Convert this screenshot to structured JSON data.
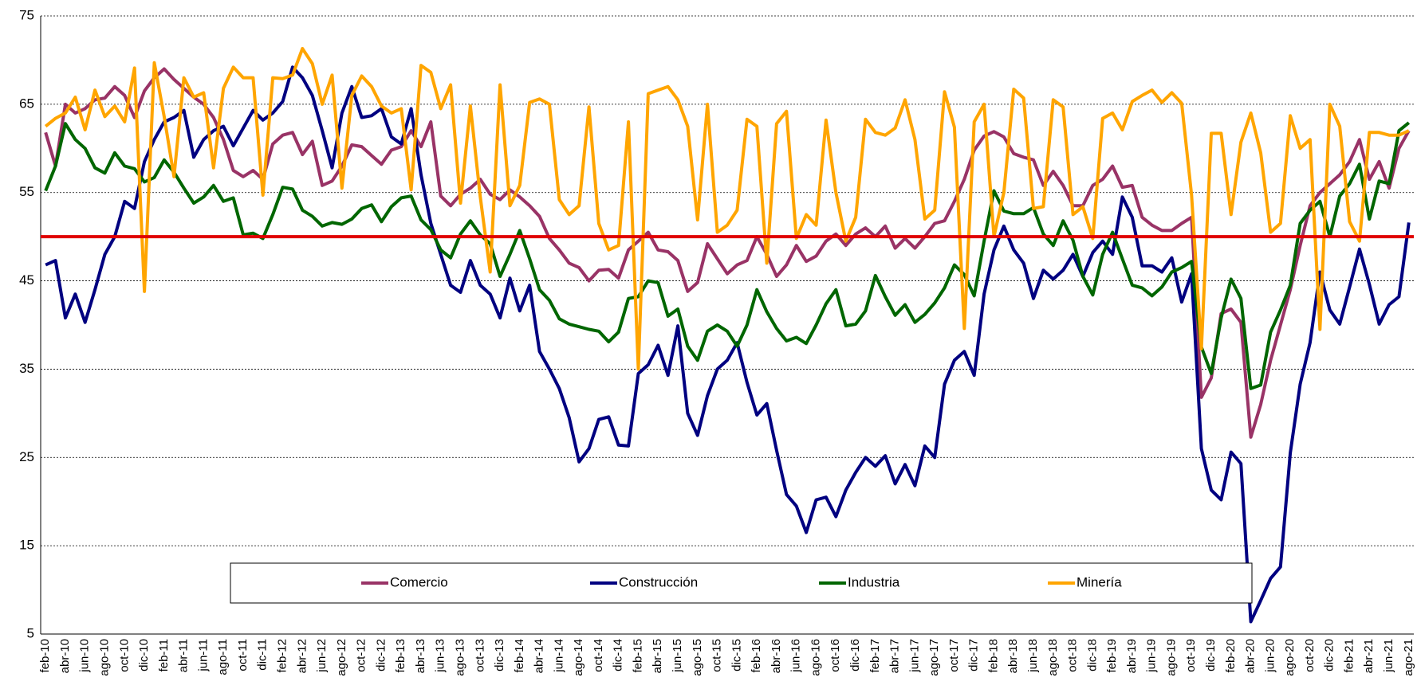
{
  "chart_data": {
    "type": "line",
    "categories": [
      "feb-10",
      null,
      "abr-10",
      null,
      "jun-10",
      null,
      "ago-10",
      null,
      "oct-10",
      null,
      "dic-10",
      null,
      "feb-11",
      null,
      "abr-11",
      null,
      "jun-11",
      null,
      "ago-11",
      null,
      "oct-11",
      null,
      "dic-11",
      null,
      "feb-12",
      null,
      "abr-12",
      null,
      "jun-12",
      null,
      "ago-12",
      null,
      "oct-12",
      null,
      "dic-12",
      null,
      "feb-13",
      null,
      "abr-13",
      null,
      "jun-13",
      null,
      "ago-13",
      null,
      "oct-13",
      null,
      "dic-13",
      null,
      "feb-14",
      null,
      "abr-14",
      null,
      "jun-14",
      null,
      "ago-14",
      null,
      "oct-14",
      null,
      "dic-14",
      null,
      "feb-15",
      null,
      "abr-15",
      null,
      "jun-15",
      null,
      "ago-15",
      null,
      "oct-15",
      null,
      "dic-15",
      null,
      "feb-16",
      null,
      "abr-16",
      null,
      "jun-16",
      null,
      "ago-16",
      null,
      "oct-16",
      null,
      "dic-16",
      null,
      "feb-17",
      null,
      "abr-17",
      null,
      "jun-17",
      null,
      "ago-17",
      null,
      "oct-17",
      null,
      "dic-17",
      null,
      "feb-18",
      null,
      "abr-18",
      null,
      "jun-18",
      null,
      "ago-18",
      null,
      "oct-18",
      null,
      "dic-18",
      null,
      "feb-19",
      null,
      "abr-19",
      null,
      "jun-19",
      null,
      "ago-19",
      null,
      "oct-19",
      null,
      "dic-19",
      null,
      "feb-20",
      null,
      "abr-20",
      null,
      "jun-20",
      null,
      "ago-20",
      null,
      "oct-20",
      null,
      "dic-20",
      null,
      "feb-21",
      null,
      "abr-21",
      null,
      "jun-21",
      null,
      "ago-21"
    ],
    "series": [
      {
        "name": "Comercio",
        "color": "#993366",
        "values": [
          61.8,
          58,
          65,
          64,
          64.5,
          65.5,
          65.7,
          67,
          66,
          63.5,
          66.5,
          68,
          69,
          67.8,
          66.8,
          65.8,
          65,
          63.5,
          61,
          57.5,
          56.8,
          57.5,
          56.5,
          60.5,
          61.5,
          61.8,
          59.3,
          60.8,
          55.8,
          56.3,
          58,
          60.4,
          60.2,
          59.2,
          58.2,
          59.8,
          60.2,
          62,
          60.2,
          63,
          54.6,
          53.5,
          54.8,
          55.5,
          56.5,
          54.8,
          54.2,
          55.3,
          54.5,
          53.5,
          52.3,
          49.8,
          48.5,
          47,
          46.5,
          45,
          46.2,
          46.3,
          45.3,
          48.5,
          49.5,
          50.5,
          48.5,
          48.3,
          47.3,
          43.8,
          44.8,
          49.2,
          47.5,
          45.8,
          46.8,
          47.3,
          50,
          48,
          45.5,
          46.8,
          49,
          47.2,
          47.8,
          49.5,
          50.3,
          49,
          50.3,
          51,
          50,
          51.2,
          48.7,
          49.8,
          48.7,
          50,
          51.5,
          51.8,
          54,
          56.5,
          59.8,
          61.4,
          61.9,
          61.3,
          59.4,
          59,
          58.7,
          55.8,
          57.4,
          55.8,
          53.5,
          53.5,
          55.8,
          56.5,
          58,
          55.6,
          55.8,
          52.2,
          51.3,
          50.7,
          50.7,
          51.5,
          52.2,
          31.8,
          34,
          41.3,
          41.8,
          40.3,
          27.3,
          31,
          36,
          40,
          44,
          49,
          53.5,
          55,
          56,
          57,
          58.5,
          61,
          56.5,
          58.5,
          55.5,
          60,
          62
        ]
      },
      {
        "name": "Construcción",
        "color": "#000080",
        "values": [
          46.8,
          47.3,
          40.8,
          43.5,
          40.3,
          44,
          48,
          50,
          54,
          53.2,
          58.5,
          61,
          63,
          63.5,
          64.3,
          59,
          61,
          62,
          62.5,
          60.3,
          62.3,
          64.3,
          63.2,
          64,
          65.3,
          69.2,
          68,
          66,
          62,
          57.8,
          64,
          67,
          63.5,
          63.7,
          64.5,
          61.3,
          60.5,
          64.5,
          57,
          51.5,
          48,
          44.5,
          43.7,
          47.3,
          44.5,
          43.5,
          40.8,
          45.3,
          41.6,
          44.5,
          37,
          35,
          32.8,
          29.5,
          24.5,
          26,
          29.3,
          29.6,
          26.4,
          26.3,
          34.5,
          35.5,
          37.7,
          34.3,
          39.9,
          30,
          27.5,
          32,
          35,
          36,
          38,
          33.5,
          29.8,
          31.1,
          25.8,
          20.8,
          19.5,
          16.5,
          20.2,
          20.5,
          18.3,
          21.3,
          23.3,
          25,
          24,
          25.2,
          22,
          24.2,
          21.8,
          26.3,
          25,
          33.3,
          36,
          37,
          34.3,
          43.5,
          48.5,
          51.2,
          48.5,
          47,
          43,
          46.2,
          45.2,
          46.2,
          48,
          45.5,
          48.2,
          49.5,
          48,
          54.5,
          52.2,
          46.7,
          46.7,
          46,
          47.6,
          42.6,
          45.8,
          26,
          21.3,
          20.2,
          25.6,
          24.3,
          6.4,
          8.8,
          11.3,
          12.6,
          25.5,
          33.3,
          38,
          46,
          41.7,
          40.1,
          44.3,
          48.6,
          44.6,
          40.1,
          42.3,
          43.2,
          51.6
        ]
      },
      {
        "name": "Industria",
        "color": "#006600",
        "values": [
          55.2,
          58,
          62.8,
          61,
          60,
          57.8,
          57.2,
          59.5,
          58,
          57.7,
          56.2,
          56.7,
          58.7,
          57.3,
          55.5,
          53.8,
          54.5,
          55.8,
          54,
          54.4,
          50.2,
          50.4,
          49.8,
          52.5,
          55.6,
          55.4,
          53,
          52.3,
          51.2,
          51.6,
          51.4,
          52,
          53.2,
          53.6,
          51.7,
          53.4,
          54.4,
          54.6,
          51.9,
          50.8,
          48.5,
          47.6,
          50.3,
          51.8,
          50.2,
          49.2,
          45.5,
          48,
          50.7,
          47.5,
          44,
          42.8,
          40.7,
          40.1,
          39.8,
          39.5,
          39.3,
          38.1,
          39.2,
          43,
          43.2,
          45,
          44.8,
          41,
          41.8,
          37.6,
          36,
          39.3,
          40,
          39.3,
          37.6,
          40,
          44,
          41.5,
          39.6,
          38.2,
          38.6,
          37.9,
          40,
          42.4,
          44,
          39.9,
          40.1,
          41.6,
          45.6,
          43.2,
          41.1,
          42.3,
          40.3,
          41.2,
          42.5,
          44.2,
          46.8,
          45.7,
          43.3,
          49.5,
          55.2,
          52.9,
          52.6,
          52.6,
          53.3,
          50.3,
          49,
          51.8,
          49.6,
          45.5,
          43.4,
          48,
          50.5,
          47.5,
          44.5,
          44.2,
          43.3,
          44.3,
          46,
          46.5,
          47.2,
          37.5,
          34.5,
          40.8,
          45.2,
          43,
          32.8,
          33.2,
          39.2,
          41.7,
          44.5,
          51.5,
          53,
          54,
          50,
          54.6,
          56,
          58.2,
          52,
          56.3,
          56,
          62,
          62.9
        ]
      },
      {
        "name": "Minería",
        "color": "#ffa500",
        "values": [
          62.5,
          63.4,
          64,
          65.8,
          62.1,
          66.6,
          63.6,
          64.8,
          63,
          69.1,
          43.8,
          69.7,
          63.6,
          56.8,
          68,
          65.8,
          66.3,
          57.8,
          66.8,
          69.2,
          68,
          68,
          54.7,
          68,
          67.9,
          68.3,
          71.3,
          69.6,
          65,
          68.3,
          55.5,
          66,
          68.2,
          67,
          64.8,
          64,
          64.5,
          55.3,
          69.4,
          68.6,
          64.5,
          67.2,
          53.8,
          64.8,
          54.5,
          46,
          67.2,
          53.5,
          55.8,
          65.2,
          65.6,
          65,
          54.2,
          52.5,
          53.5,
          64.7,
          51.5,
          48.5,
          49,
          63,
          35,
          66.2,
          66.6,
          67,
          65.5,
          62.5,
          51.9,
          65,
          50.5,
          51.3,
          53,
          63.3,
          62.5,
          47,
          62.8,
          64.2,
          49.8,
          52.5,
          51.3,
          63.2,
          55,
          49.5,
          52.2,
          63.3,
          61.8,
          61.5,
          62.3,
          65.5,
          61,
          52,
          53,
          66.4,
          62.4,
          39.6,
          63,
          65,
          50,
          55,
          66.7,
          65.7,
          53.2,
          53.4,
          65.5,
          64.7,
          52.5,
          53.4,
          49.8,
          63.4,
          64,
          62.1,
          65.3,
          66,
          66.6,
          65.2,
          66.3,
          65.1,
          54.7,
          37.3,
          61.7,
          61.7,
          52.5,
          60.7,
          64,
          59.5,
          50.5,
          51.5,
          63.7,
          60,
          61,
          39.5,
          65,
          62.5,
          51.7,
          49.5,
          61.8,
          61.8,
          61.5,
          61.5,
          62
        ]
      }
    ],
    "reference_line": {
      "value": 50,
      "color": "#e00000"
    },
    "ylim": [
      5,
      75
    ],
    "yticks": [
      5,
      15,
      25,
      35,
      45,
      55,
      65,
      75
    ],
    "grid": true,
    "legend": "bottom"
  }
}
